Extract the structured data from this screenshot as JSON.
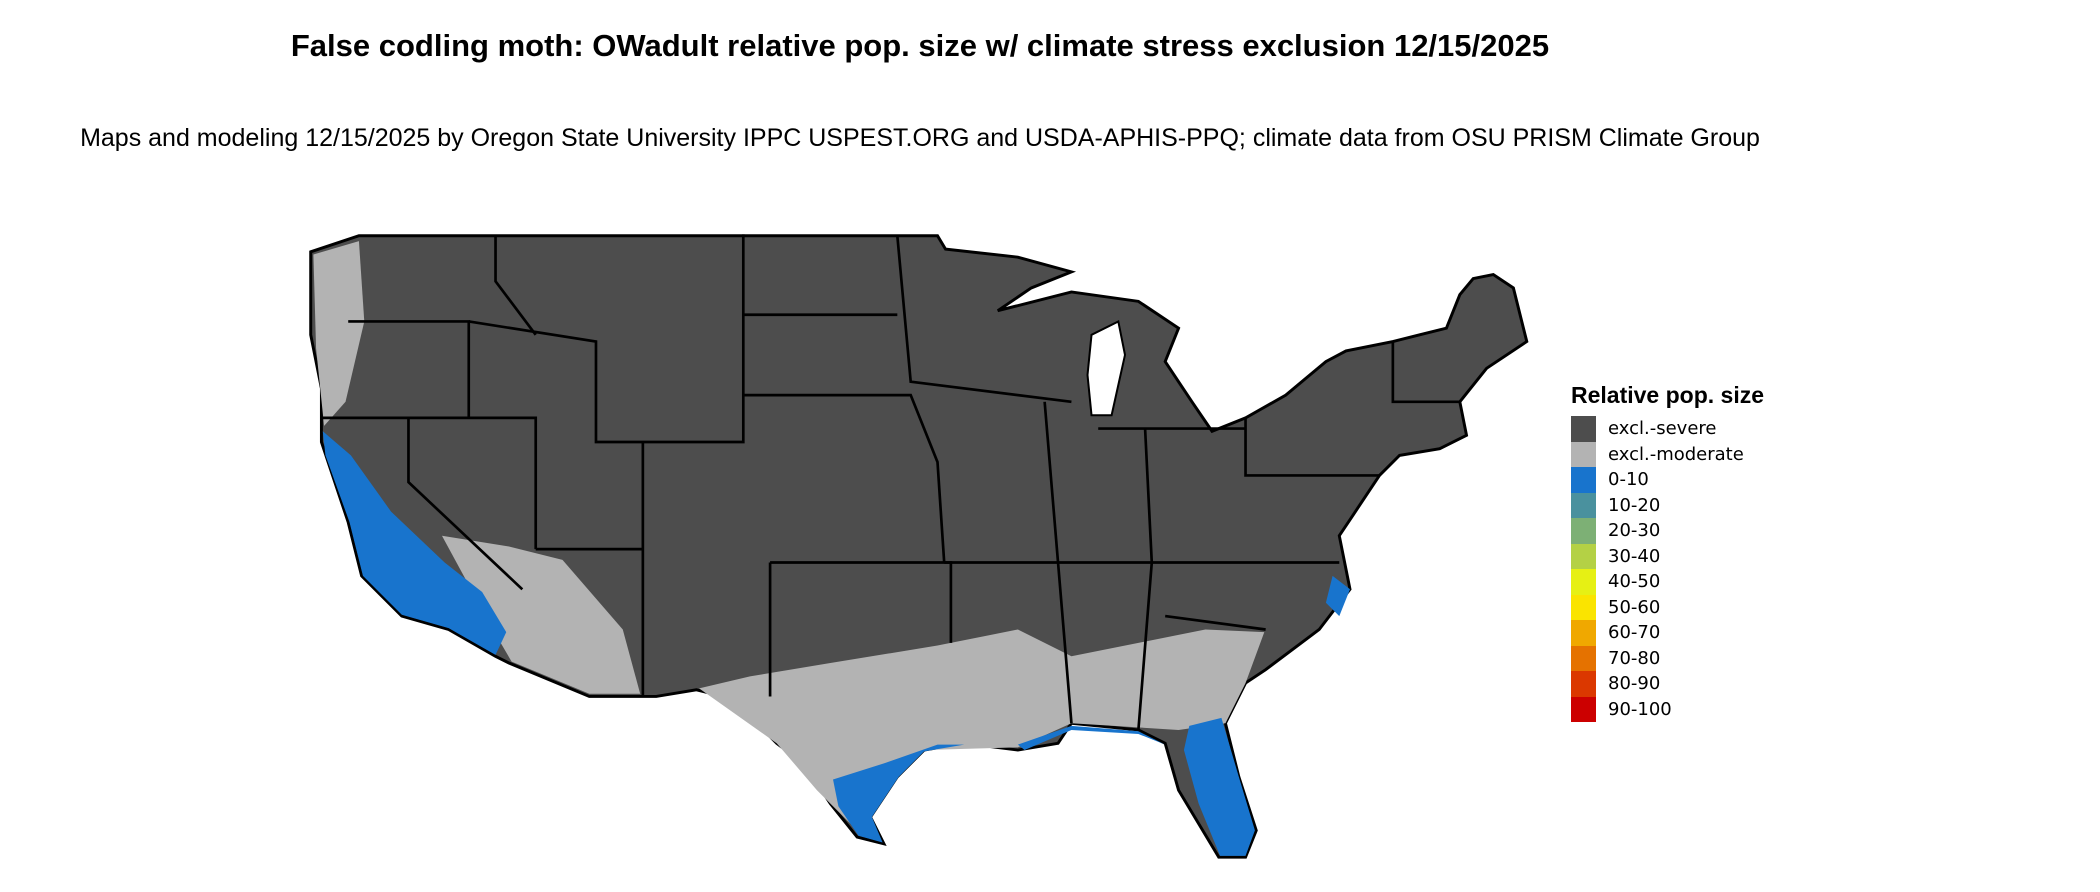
{
  "title": "False codling moth: OWadult relative pop. size w/ climate stress exclusion 12/15/2025",
  "subtitle": "Maps and modeling 12/15/2025 by Oregon State University IPPC USPEST.ORG and USDA-APHIS-PPQ; climate data from OSU PRISM Climate Group",
  "legend": {
    "title": "Relative pop. size",
    "items": [
      {
        "label": "excl.-severe",
        "color": "#4d4d4d"
      },
      {
        "label": "excl.-moderate",
        "color": "#b3b3b3"
      },
      {
        "label": "0-10",
        "color": "#1874cd"
      },
      {
        "label": "10-20",
        "color": "#4a919e"
      },
      {
        "label": "20-30",
        "color": "#7db075"
      },
      {
        "label": "30-40",
        "color": "#b4d145"
      },
      {
        "label": "40-50",
        "color": "#e6f014"
      },
      {
        "label": "50-60",
        "color": "#fae400"
      },
      {
        "label": "60-70",
        "color": "#f0a800"
      },
      {
        "label": "70-80",
        "color": "#e57200"
      },
      {
        "label": "80-90",
        "color": "#db3800"
      },
      {
        "label": "90-100",
        "color": "#cc0000"
      }
    ]
  },
  "map": {
    "region": "Contiguous United States",
    "background_color": "#4d4d4d",
    "moderate_color": "#b3b3b3",
    "low_color": "#1874cd",
    "border_color": "#000000"
  }
}
